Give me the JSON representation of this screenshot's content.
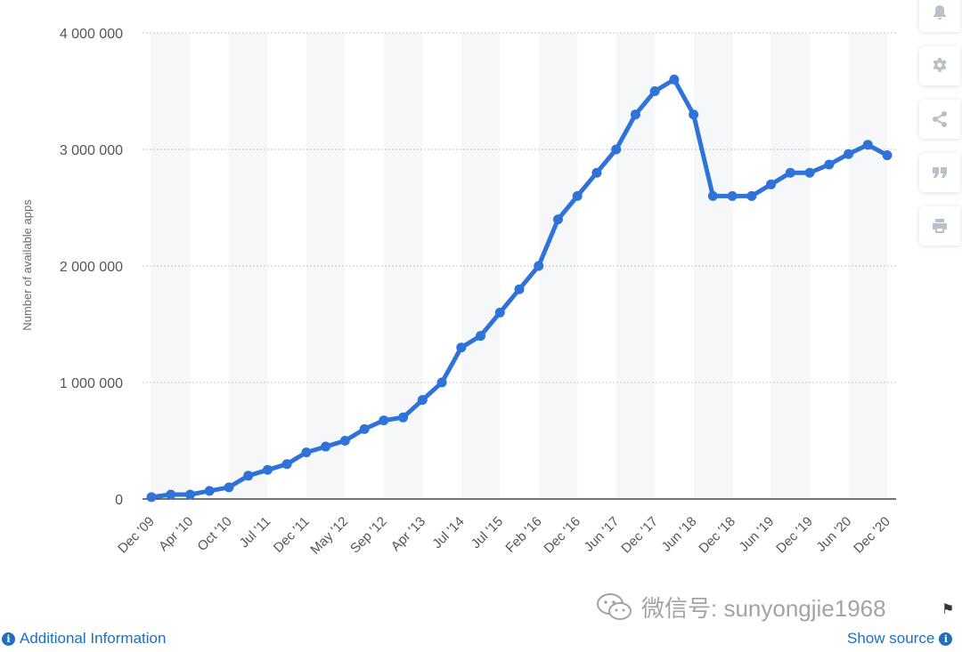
{
  "chart_data": {
    "type": "line",
    "ylabel": "Number of available apps",
    "ylim": [
      0,
      4000000
    ],
    "yticks": [
      {
        "value": 0,
        "label": "0"
      },
      {
        "value": 1000000,
        "label": "1 000 000"
      },
      {
        "value": 2000000,
        "label": "2 000 000"
      },
      {
        "value": 3000000,
        "label": "3 000 000"
      },
      {
        "value": 4000000,
        "label": "4 000 000"
      }
    ],
    "xtick_labels": [
      "Dec '09",
      "Apr '10",
      "Oct '10",
      "Jul '11",
      "Dec '11",
      "May '12",
      "Sep '12",
      "Apr '13",
      "Jul '14",
      "Jul '15",
      "Feb '16",
      "Dec '16",
      "Jun '17",
      "Dec '17",
      "Jun '18",
      "Dec '18",
      "Jun '19",
      "Dec '19",
      "Jun '20",
      "Dec '20"
    ],
    "grid": true,
    "series": [
      {
        "color": "#2f72d8",
        "values": [
          16000,
          38000,
          38000,
          70000,
          100000,
          200000,
          250000,
          300000,
          400000,
          450000,
          500000,
          600000,
          675000,
          700000,
          850000,
          1000000,
          1300000,
          1400000,
          1600000,
          1800000,
          2000000,
          2400000,
          2600000,
          2800000,
          3000000,
          3300000,
          3500000,
          3600000,
          3300000,
          2600000,
          2600000,
          2600000,
          2700000,
          2800000,
          2800000,
          2870000,
          2960000,
          3040000,
          2950000
        ]
      }
    ]
  },
  "toolbar": {
    "icons": [
      "bell-icon",
      "gear-icon",
      "share-icon",
      "quote-icon",
      "print-icon"
    ]
  },
  "footer": {
    "additional_info": "Additional Information",
    "show_source": "Show source",
    "watermark": "微信号: sunyongjie1968"
  }
}
